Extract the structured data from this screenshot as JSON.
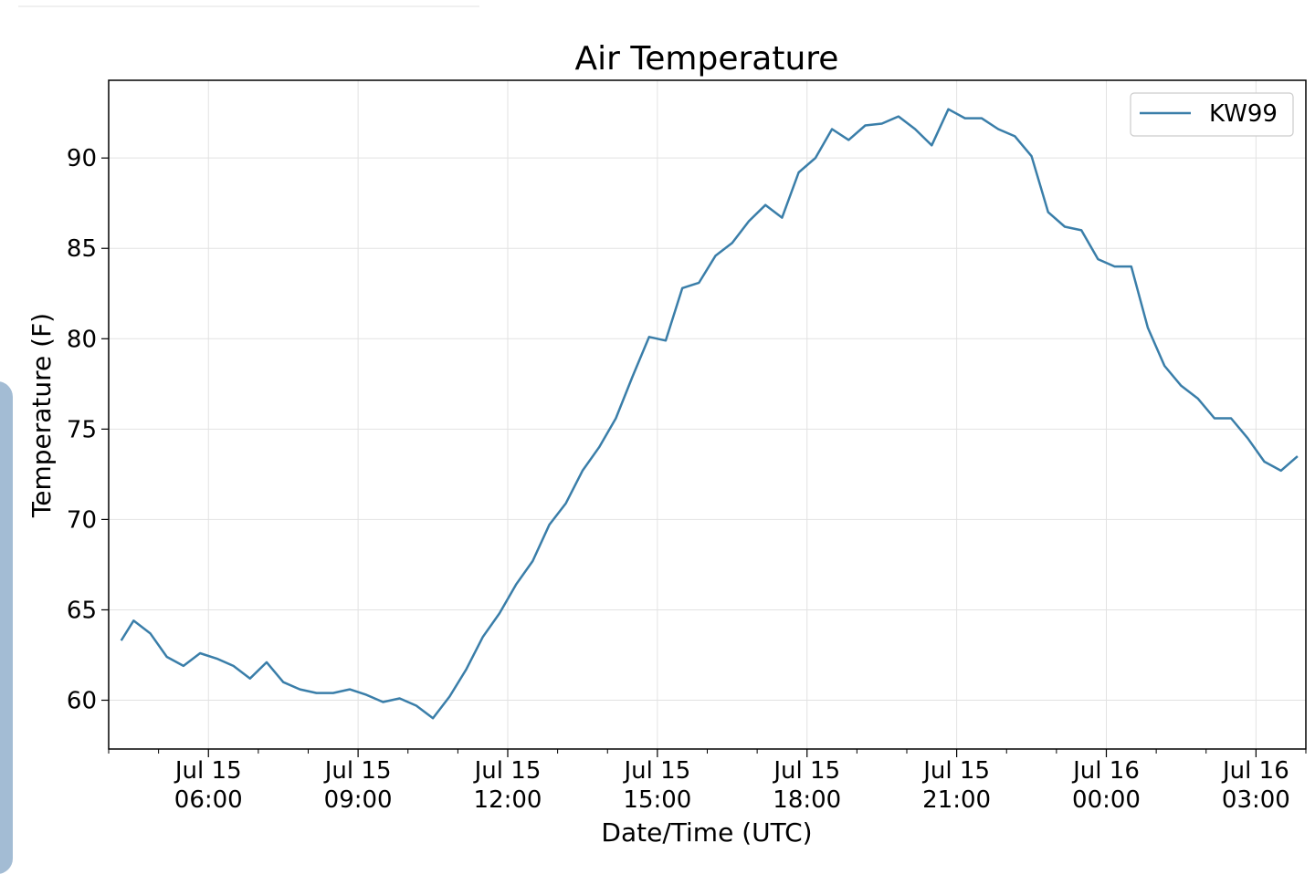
{
  "chart_data": {
    "type": "line",
    "title": "Air Temperature",
    "xlabel": "Date/Time (UTC)",
    "ylabel": "Temperature (F)",
    "x_range": [
      "2019-07-15T04:00",
      "2019-07-16T04:00"
    ],
    "ylim": [
      57.3,
      94.3
    ],
    "grid": true,
    "legend": "top-right",
    "x_ticks": [
      {
        "line1": "Jul 15",
        "line2": "06:00",
        "time": "2019-07-15T06:00"
      },
      {
        "line1": "Jul 15",
        "line2": "09:00",
        "time": "2019-07-15T09:00"
      },
      {
        "line1": "Jul 15",
        "line2": "12:00",
        "time": "2019-07-15T12:00"
      },
      {
        "line1": "Jul 15",
        "line2": "15:00",
        "time": "2019-07-15T15:00"
      },
      {
        "line1": "Jul 15",
        "line2": "18:00",
        "time": "2019-07-15T18:00"
      },
      {
        "line1": "Jul 15",
        "line2": "21:00",
        "time": "2019-07-15T21:00"
      },
      {
        "line1": "Jul 16",
        "line2": "00:00",
        "time": "2019-07-16T00:00"
      },
      {
        "line1": "Jul 16",
        "line2": "03:00",
        "time": "2019-07-16T03:00"
      }
    ],
    "y_ticks": [
      "60",
      "65",
      "70",
      "75",
      "80",
      "85",
      "90"
    ],
    "series": [
      {
        "name": "KW99",
        "color": "#3a7ea9",
        "points": [
          [
            "2019-07-15T04:15",
            63.3
          ],
          [
            "2019-07-15T04:30",
            64.4
          ],
          [
            "2019-07-15T04:50",
            63.7
          ],
          [
            "2019-07-15T05:10",
            62.4
          ],
          [
            "2019-07-15T05:30",
            61.9
          ],
          [
            "2019-07-15T05:50",
            62.6
          ],
          [
            "2019-07-15T06:10",
            62.3
          ],
          [
            "2019-07-15T06:30",
            61.9
          ],
          [
            "2019-07-15T06:50",
            61.2
          ],
          [
            "2019-07-15T07:10",
            62.1
          ],
          [
            "2019-07-15T07:30",
            61.0
          ],
          [
            "2019-07-15T07:50",
            60.6
          ],
          [
            "2019-07-15T08:10",
            60.4
          ],
          [
            "2019-07-15T08:30",
            60.4
          ],
          [
            "2019-07-15T08:50",
            60.6
          ],
          [
            "2019-07-15T09:10",
            60.3
          ],
          [
            "2019-07-15T09:30",
            59.9
          ],
          [
            "2019-07-15T09:50",
            60.1
          ],
          [
            "2019-07-15T10:10",
            59.7
          ],
          [
            "2019-07-15T10:30",
            59.0
          ],
          [
            "2019-07-15T10:50",
            60.2
          ],
          [
            "2019-07-15T11:10",
            61.7
          ],
          [
            "2019-07-15T11:30",
            63.5
          ],
          [
            "2019-07-15T11:50",
            64.8
          ],
          [
            "2019-07-15T12:10",
            66.4
          ],
          [
            "2019-07-15T12:30",
            67.7
          ],
          [
            "2019-07-15T12:50",
            69.7
          ],
          [
            "2019-07-15T13:10",
            70.9
          ],
          [
            "2019-07-15T13:30",
            72.7
          ],
          [
            "2019-07-15T13:50",
            74.0
          ],
          [
            "2019-07-15T14:10",
            75.6
          ],
          [
            "2019-07-15T14:30",
            77.9
          ],
          [
            "2019-07-15T14:50",
            80.1
          ],
          [
            "2019-07-15T15:10",
            79.9
          ],
          [
            "2019-07-15T15:30",
            82.8
          ],
          [
            "2019-07-15T15:50",
            83.1
          ],
          [
            "2019-07-15T16:10",
            84.6
          ],
          [
            "2019-07-15T16:30",
            85.3
          ],
          [
            "2019-07-15T16:50",
            86.5
          ],
          [
            "2019-07-15T17:10",
            87.4
          ],
          [
            "2019-07-15T17:30",
            86.7
          ],
          [
            "2019-07-15T17:50",
            89.2
          ],
          [
            "2019-07-15T18:10",
            90.0
          ],
          [
            "2019-07-15T18:30",
            91.6
          ],
          [
            "2019-07-15T18:50",
            91.0
          ],
          [
            "2019-07-15T19:10",
            91.8
          ],
          [
            "2019-07-15T19:30",
            91.9
          ],
          [
            "2019-07-15T19:50",
            92.3
          ],
          [
            "2019-07-15T20:10",
            91.6
          ],
          [
            "2019-07-15T20:30",
            90.7
          ],
          [
            "2019-07-15T20:50",
            92.7
          ],
          [
            "2019-07-15T21:10",
            92.2
          ],
          [
            "2019-07-15T21:30",
            92.2
          ],
          [
            "2019-07-15T21:50",
            91.6
          ],
          [
            "2019-07-15T22:10",
            91.2
          ],
          [
            "2019-07-15T22:30",
            90.1
          ],
          [
            "2019-07-15T22:50",
            87.0
          ],
          [
            "2019-07-15T23:10",
            86.2
          ],
          [
            "2019-07-15T23:30",
            86.0
          ],
          [
            "2019-07-15T23:50",
            84.4
          ],
          [
            "2019-07-16T00:10",
            84.0
          ],
          [
            "2019-07-16T00:30",
            84.0
          ],
          [
            "2019-07-16T00:50",
            80.6
          ],
          [
            "2019-07-16T01:10",
            78.5
          ],
          [
            "2019-07-16T01:30",
            77.4
          ],
          [
            "2019-07-16T01:50",
            76.7
          ],
          [
            "2019-07-16T02:10",
            75.6
          ],
          [
            "2019-07-16T02:30",
            75.6
          ],
          [
            "2019-07-16T02:50",
            74.5
          ],
          [
            "2019-07-16T03:10",
            73.2
          ],
          [
            "2019-07-16T03:30",
            72.7
          ],
          [
            "2019-07-16T03:50",
            73.5
          ]
        ]
      }
    ]
  }
}
